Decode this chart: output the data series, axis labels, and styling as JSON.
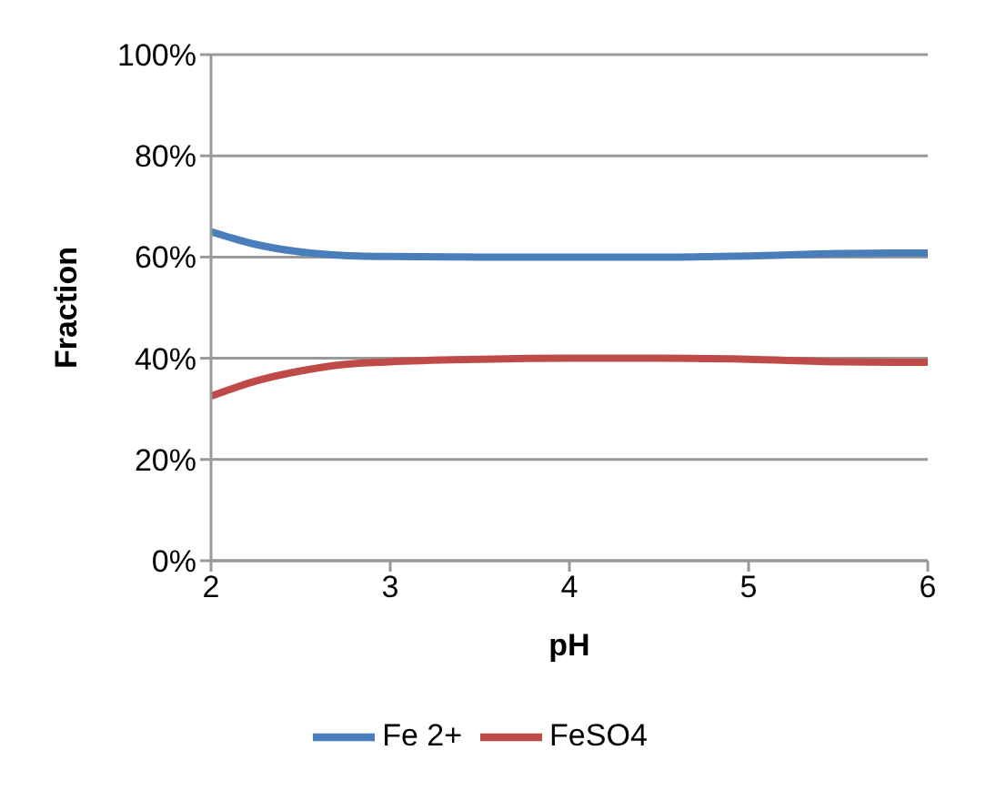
{
  "chart_data": {
    "type": "line",
    "xlabel": "pH",
    "ylabel": "Fraction",
    "x": [
      2,
      2.25,
      2.5,
      2.75,
      3,
      3.5,
      4,
      4.5,
      5,
      5.5,
      6
    ],
    "series": [
      {
        "name": "Fe 2+",
        "color": "#4a7ebb",
        "values": [
          65,
          62.5,
          61,
          60.3,
          60.1,
          60,
          60,
          60,
          60.2,
          60.7,
          60.8
        ]
      },
      {
        "name": "FeSO4",
        "color": "#be4b48",
        "values": [
          32.5,
          35.5,
          37.5,
          38.8,
          39.3,
          39.8,
          40,
          40,
          39.8,
          39.3,
          39.2
        ]
      }
    ],
    "xlim": [
      2,
      6
    ],
    "xticks": [
      2,
      3,
      4,
      5,
      6
    ],
    "ylim": [
      0,
      100
    ],
    "yticks": [
      {
        "value": 0,
        "label": "0%"
      },
      {
        "value": 20,
        "label": "20%"
      },
      {
        "value": 40,
        "label": "40%"
      },
      {
        "value": 60,
        "label": "60%"
      },
      {
        "value": 80,
        "label": "80%"
      },
      {
        "value": 100,
        "label": "100%"
      }
    ],
    "grid": "y",
    "legend": "bottom",
    "marker": "none",
    "line_style": "solid"
  }
}
